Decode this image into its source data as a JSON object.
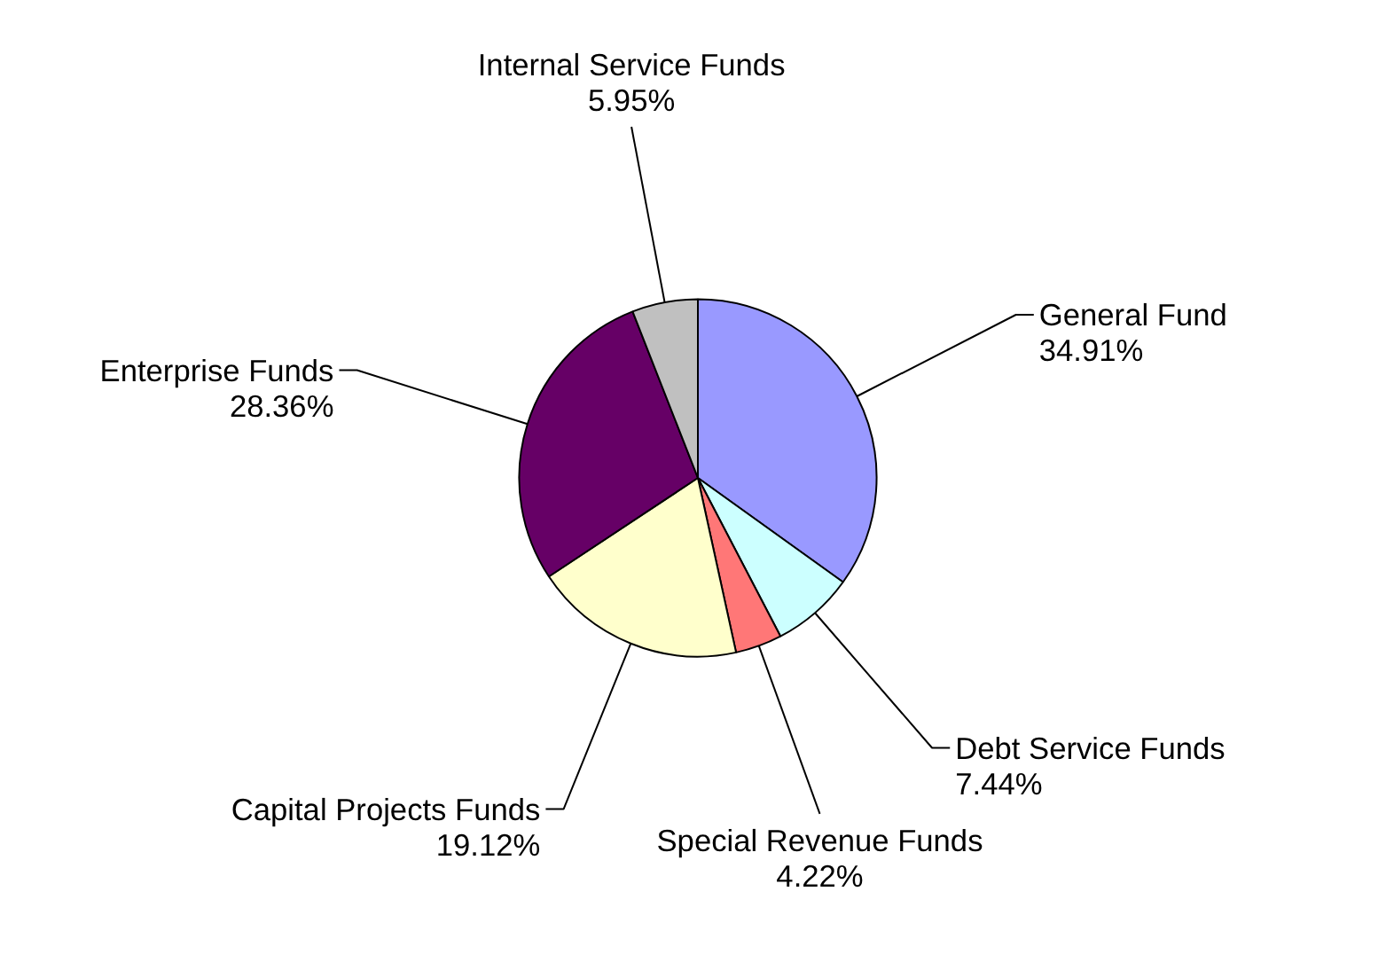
{
  "chart_data": {
    "type": "pie",
    "categories": [
      "General Fund",
      "Debt Service Funds",
      "Special Revenue Funds",
      "Capital Projects Funds",
      "Enterprise Funds",
      "Internal Service Funds"
    ],
    "values": [
      34.91,
      7.44,
      4.22,
      19.12,
      28.36,
      5.95
    ],
    "value_labels": [
      "34.91%",
      "7.44%",
      "4.22%",
      "19.12%",
      "28.36%",
      "5.95%"
    ],
    "colors": [
      "#9999ff",
      "#ccffff",
      "#ff7777",
      "#ffffcc",
      "#660066",
      "#c0c0c0"
    ],
    "legend": false
  }
}
